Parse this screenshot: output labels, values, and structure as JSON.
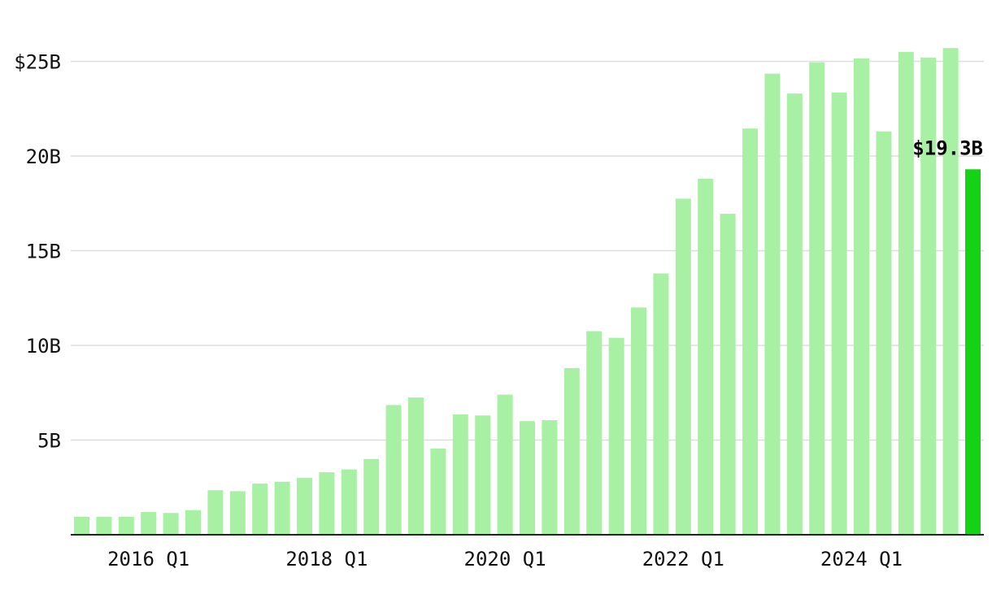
{
  "chart_data": {
    "type": "bar",
    "title": "",
    "xlabel": "",
    "ylabel": "",
    "categories": [
      "2015 Q2",
      "2015 Q3",
      "2015 Q4",
      "2016 Q1",
      "2016 Q2",
      "2016 Q3",
      "2016 Q4",
      "2017 Q1",
      "2017 Q2",
      "2017 Q3",
      "2017 Q4",
      "2018 Q1",
      "2018 Q2",
      "2018 Q3",
      "2018 Q4",
      "2019 Q1",
      "2019 Q2",
      "2019 Q3",
      "2019 Q4",
      "2020 Q1",
      "2020 Q2",
      "2020 Q3",
      "2020 Q4",
      "2021 Q1",
      "2021 Q2",
      "2021 Q3",
      "2021 Q4",
      "2022 Q1",
      "2022 Q2",
      "2022 Q3",
      "2022 Q4",
      "2023 Q1",
      "2023 Q2",
      "2023 Q3",
      "2023 Q4",
      "2024 Q1",
      "2024 Q2",
      "2024 Q3",
      "2024 Q4",
      "2025 Q1",
      "2025 Q2"
    ],
    "values": [
      0.95,
      0.95,
      0.95,
      1.2,
      1.15,
      1.3,
      2.35,
      2.3,
      2.7,
      2.8,
      3.0,
      3.3,
      3.45,
      4.0,
      6.85,
      7.25,
      4.55,
      6.35,
      6.3,
      7.4,
      6.0,
      6.05,
      8.8,
      10.75,
      10.4,
      12.0,
      13.8,
      17.75,
      18.8,
      16.95,
      21.45,
      24.35,
      23.3,
      24.95,
      23.35,
      25.15,
      21.3,
      25.5,
      25.2,
      25.7,
      19.3
    ],
    "highlight_index": 40,
    "highlight_label": "$19.3B",
    "ylim": [
      0,
      27
    ],
    "yticks": [
      5,
      10,
      15,
      20,
      25
    ],
    "ytick_labels": [
      "5B",
      "10B",
      "15B",
      "20B",
      "$25B"
    ],
    "xtick_indices": [
      3,
      11,
      19,
      27,
      35
    ],
    "xtick_labels": [
      "2016 Q1",
      "2018 Q1",
      "2020 Q1",
      "2022 Q1",
      "2024 Q1"
    ],
    "grid": true,
    "legend": "none",
    "colors": {
      "bar": "#a8f0a4",
      "highlight": "#14d214",
      "grid": "#dddddd",
      "axis": "#222222",
      "text": "#111111"
    }
  }
}
